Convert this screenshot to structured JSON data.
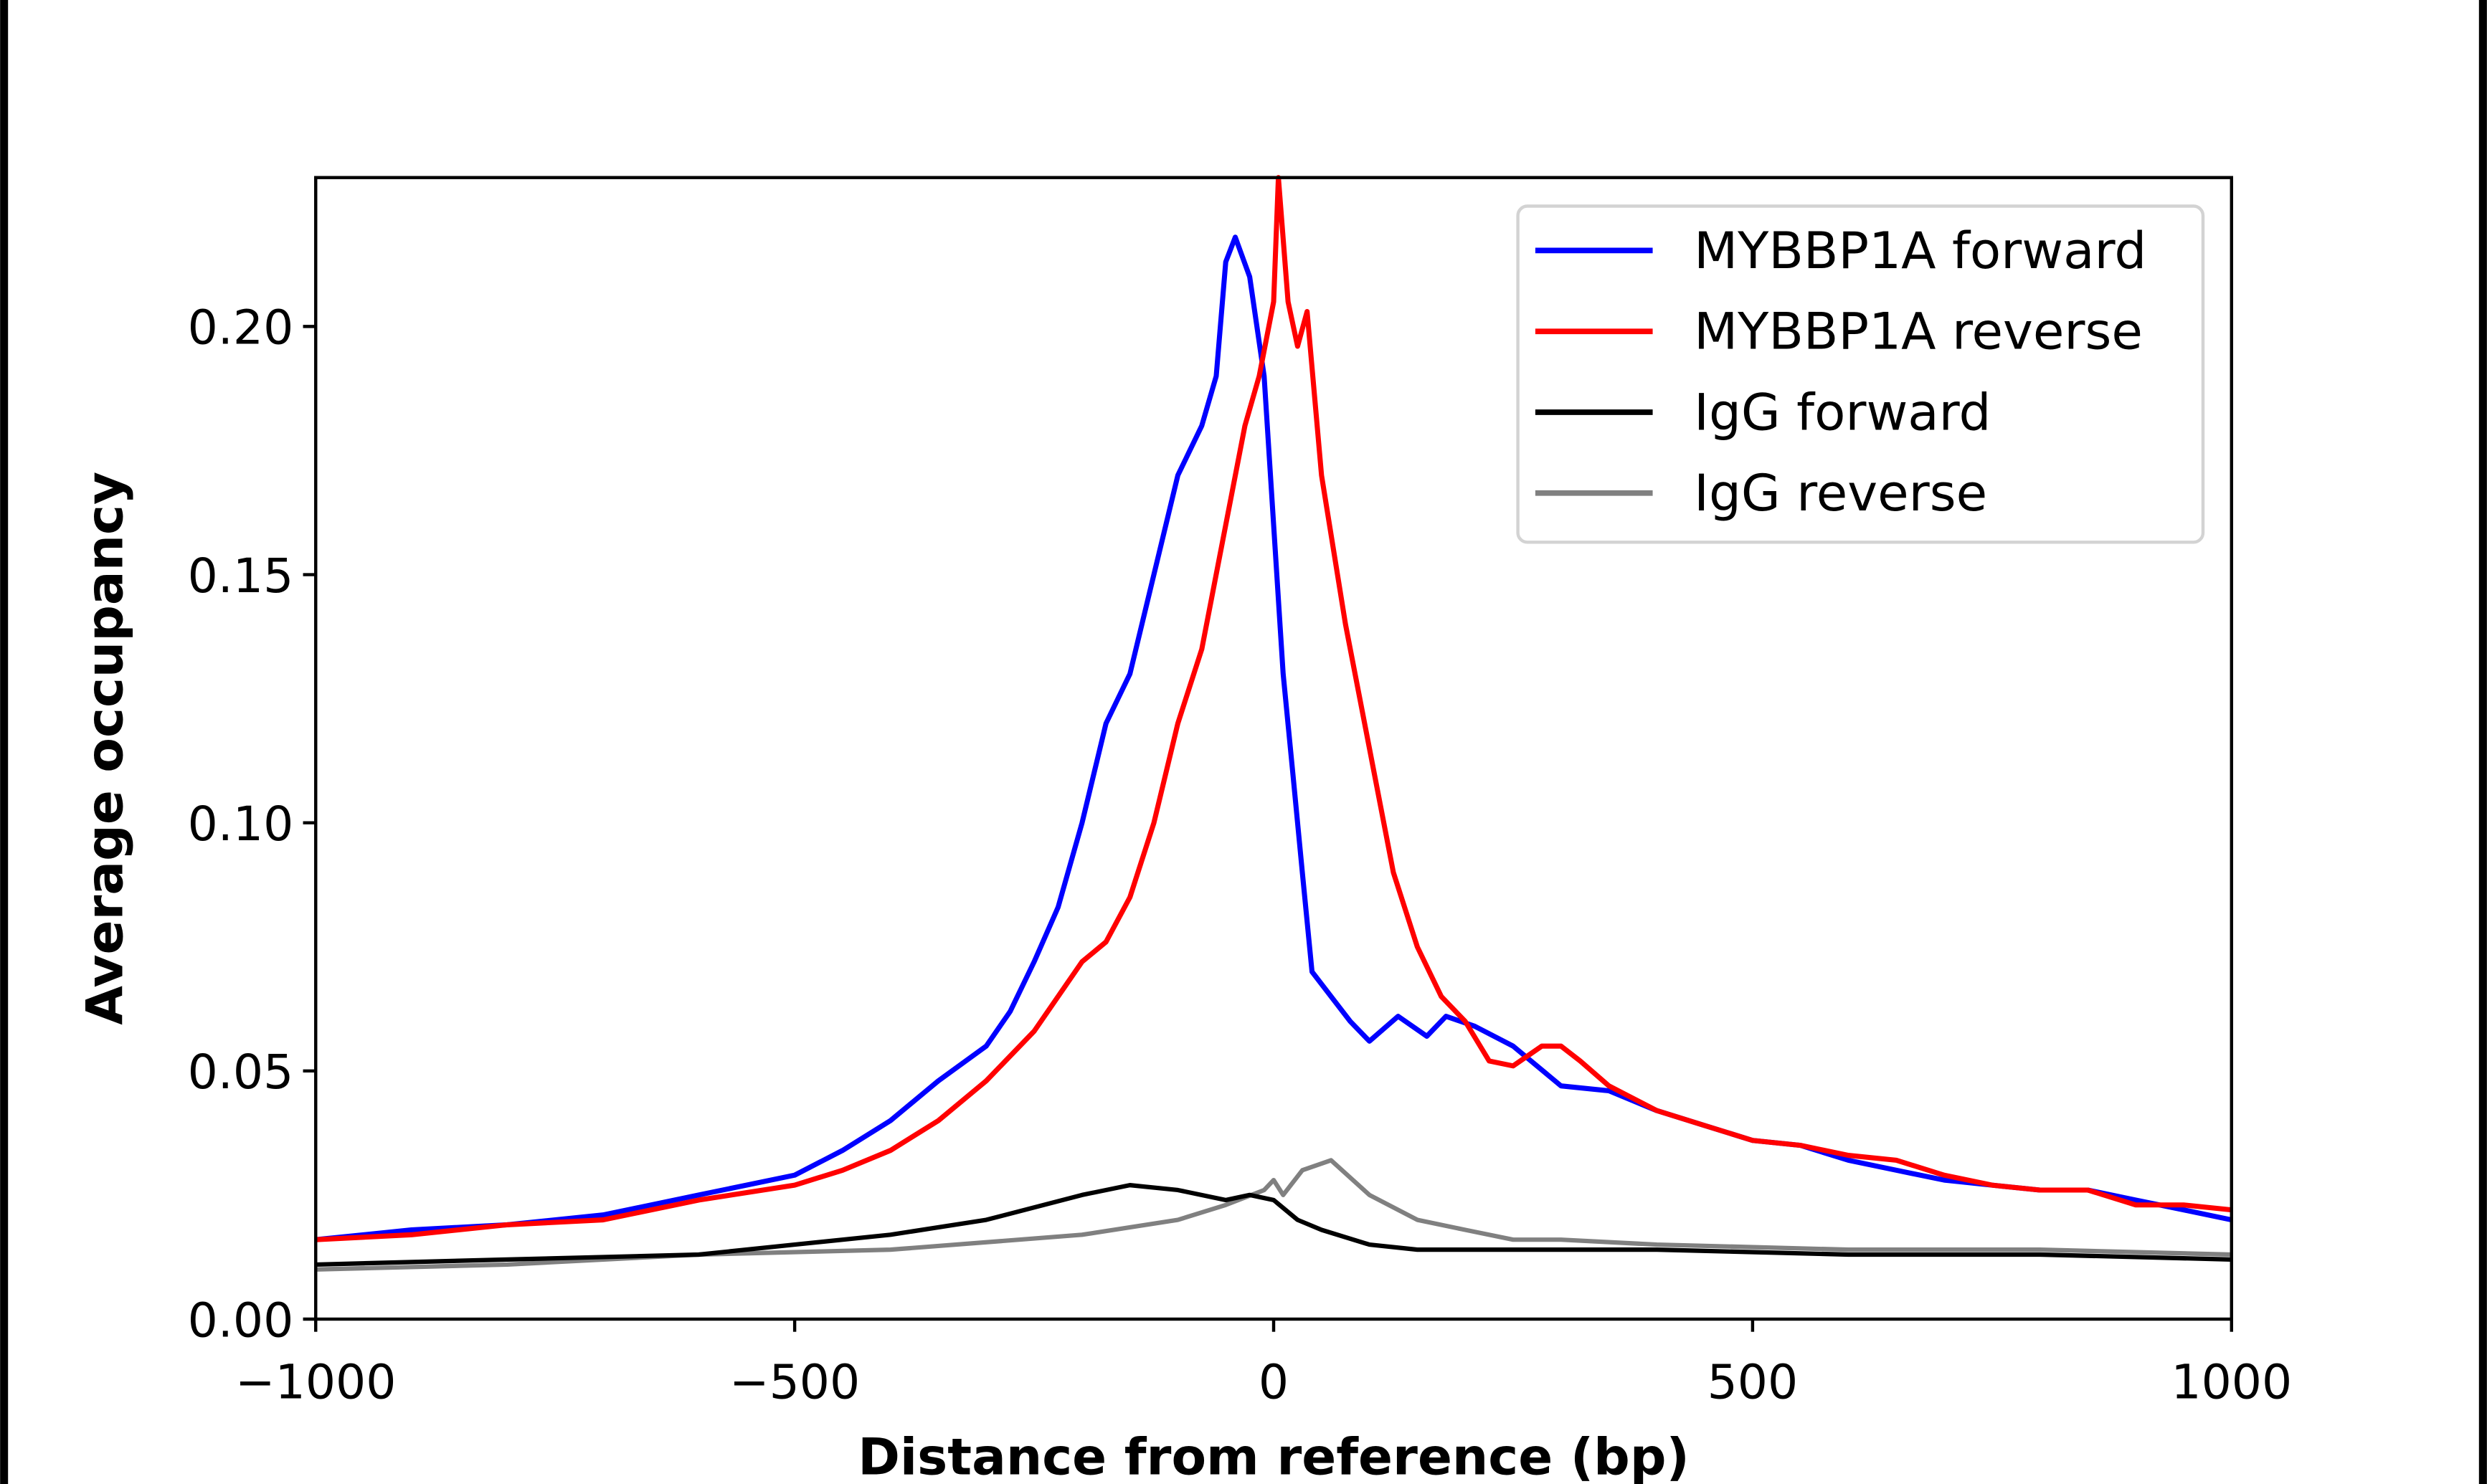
{
  "chart_data": {
    "type": "line",
    "title": "",
    "xlabel": "Distance from reference (bp)",
    "ylabel": "Average occupancy",
    "xlim": [
      -1000,
      1000
    ],
    "ylim": [
      0,
      0.23
    ],
    "xticks": [
      -1000,
      -500,
      0,
      500,
      1000
    ],
    "xtick_labels": [
      "−1000",
      "−500",
      "0",
      "500",
      "1000"
    ],
    "yticks": [
      0,
      0.05,
      0.1,
      0.15,
      0.2
    ],
    "ytick_labels": [
      "0.00",
      "0.05",
      "0.10",
      "0.15",
      "0.20"
    ],
    "grid": false,
    "legend_position": "top-right",
    "series": [
      {
        "name": "MYBBP1A forward",
        "color": "#0000ff",
        "x": [
          -1000,
          -900,
          -800,
          -700,
          -600,
          -500,
          -450,
          -400,
          -350,
          -300,
          -275,
          -250,
          -225,
          -200,
          -175,
          -150,
          -125,
          -100,
          -75,
          -60,
          -50,
          -40,
          -25,
          -10,
          0,
          10,
          20,
          30,
          40,
          60,
          80,
          100,
          130,
          160,
          180,
          210,
          250,
          300,
          350,
          400,
          450,
          500,
          550,
          600,
          650,
          700,
          750,
          800,
          850,
          900,
          950,
          1000
        ],
        "y": [
          0.016,
          0.018,
          0.019,
          0.021,
          0.025,
          0.029,
          0.034,
          0.04,
          0.048,
          0.055,
          0.062,
          0.072,
          0.083,
          0.1,
          0.12,
          0.13,
          0.15,
          0.17,
          0.18,
          0.19,
          0.213,
          0.218,
          0.21,
          0.19,
          0.16,
          0.13,
          0.11,
          0.09,
          0.07,
          0.065,
          0.06,
          0.056,
          0.061,
          0.057,
          0.061,
          0.059,
          0.055,
          0.047,
          0.046,
          0.042,
          0.039,
          0.036,
          0.035,
          0.032,
          0.03,
          0.028,
          0.027,
          0.026,
          0.026,
          0.024,
          0.022,
          0.02
        ]
      },
      {
        "name": "MYBBP1A reverse",
        "color": "#ff0000",
        "x": [
          -1000,
          -900,
          -800,
          -700,
          -600,
          -500,
          -450,
          -400,
          -350,
          -300,
          -250,
          -200,
          -175,
          -150,
          -125,
          -100,
          -75,
          -50,
          -30,
          -15,
          0,
          5,
          15,
          25,
          35,
          50,
          75,
          100,
          125,
          150,
          175,
          200,
          225,
          250,
          280,
          300,
          320,
          350,
          400,
          450,
          500,
          550,
          600,
          650,
          700,
          750,
          800,
          850,
          900,
          950,
          1000
        ],
        "y": [
          0.016,
          0.017,
          0.019,
          0.02,
          0.024,
          0.027,
          0.03,
          0.034,
          0.04,
          0.048,
          0.058,
          0.072,
          0.076,
          0.085,
          0.1,
          0.12,
          0.135,
          0.16,
          0.18,
          0.19,
          0.205,
          0.23,
          0.205,
          0.196,
          0.203,
          0.17,
          0.14,
          0.115,
          0.09,
          0.075,
          0.065,
          0.06,
          0.052,
          0.051,
          0.055,
          0.055,
          0.052,
          0.047,
          0.042,
          0.039,
          0.036,
          0.035,
          0.033,
          0.032,
          0.029,
          0.027,
          0.026,
          0.026,
          0.023,
          0.023,
          0.022
        ]
      },
      {
        "name": "IgG forward",
        "color": "#000000",
        "x": [
          -1000,
          -800,
          -600,
          -500,
          -400,
          -300,
          -200,
          -150,
          -100,
          -50,
          -25,
          0,
          25,
          50,
          100,
          150,
          200,
          400,
          600,
          800,
          1000
        ],
        "y": [
          0.011,
          0.012,
          0.013,
          0.015,
          0.017,
          0.02,
          0.025,
          0.027,
          0.026,
          0.024,
          0.025,
          0.024,
          0.02,
          0.018,
          0.015,
          0.014,
          0.014,
          0.014,
          0.013,
          0.013,
          0.012
        ]
      },
      {
        "name": "IgG reverse",
        "color": "#808080",
        "x": [
          -1000,
          -800,
          -600,
          -400,
          -200,
          -100,
          -50,
          -10,
          0,
          10,
          30,
          60,
          100,
          150,
          200,
          250,
          300,
          400,
          600,
          800,
          1000
        ],
        "y": [
          0.01,
          0.011,
          0.013,
          0.014,
          0.017,
          0.02,
          0.023,
          0.026,
          0.028,
          0.025,
          0.03,
          0.032,
          0.025,
          0.02,
          0.018,
          0.016,
          0.016,
          0.015,
          0.014,
          0.014,
          0.013
        ]
      }
    ]
  }
}
